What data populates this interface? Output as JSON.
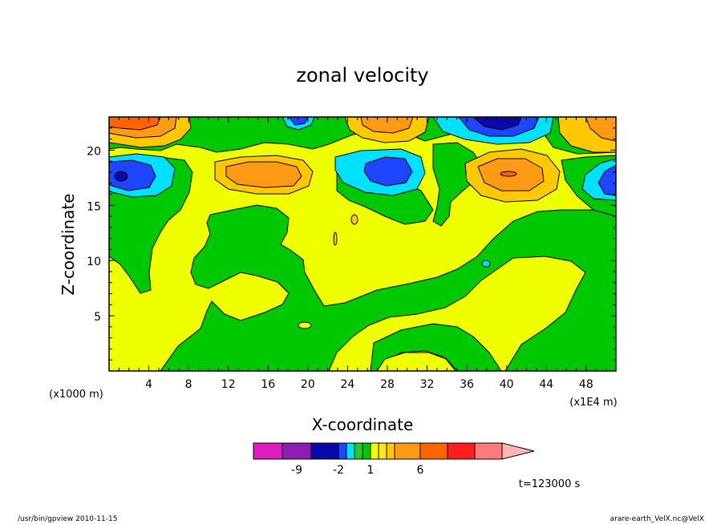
{
  "chart_data": {
    "type": "heatmap",
    "title": "zonal velocity",
    "xlabel": "X-coordinate",
    "ylabel": "Z-coordinate",
    "x_units": "(x1E4 m)",
    "y_units": "(x1000 m)",
    "xlim": [
      0,
      51
    ],
    "ylim": [
      0,
      23
    ],
    "x_ticks": [
      "4",
      "8",
      "12",
      "16",
      "20",
      "24",
      "28",
      "32",
      "36",
      "40",
      "44",
      "48"
    ],
    "y_ticks": [
      "5",
      "10",
      "15",
      "20"
    ],
    "colorbar": {
      "labels": [
        {
          "text": "-9",
          "value": -9
        },
        {
          "text": "-2",
          "value": -2
        },
        {
          "text": "1",
          "value": 1
        },
        {
          "text": "6",
          "value": 6
        }
      ],
      "colors": [
        "#e01ec0",
        "#8c1eb4",
        "#0a0aaa",
        "#1e46ff",
        "#00e0ff",
        "#28c828",
        "#00c800",
        "#f0ff00",
        "#ffe61e",
        "#ffc800",
        "#ff9a14",
        "#ff6400",
        "#ff1e1e",
        "#ff7a7a",
        "#ffb4b4"
      ],
      "extend": "max"
    },
    "grid": false,
    "legend": "colorbar-bottom"
  },
  "time_label": "t=123000 s",
  "footer": {
    "left": "/usr/bin/gpview   2010-11-15",
    "right": "arare-earth_VelX.nc@VelX"
  }
}
